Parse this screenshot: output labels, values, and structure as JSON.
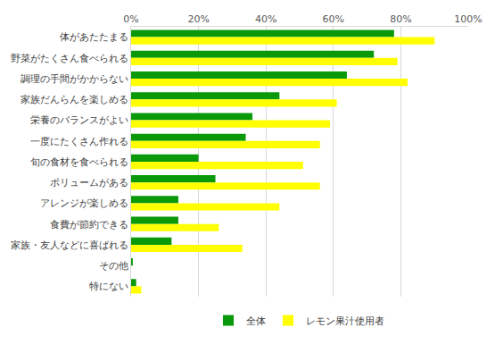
{
  "chart_data": {
    "type": "bar",
    "orientation": "horizontal",
    "categories": [
      "体があたたまる",
      "野菜がたくさん食べられる",
      "調理の手間がかからない",
      "家族だんらんを楽しめる",
      "栄養のバランスがよい",
      "一度にたくさん作れる",
      "旬の食材を食べられる",
      "ボリュームがある",
      "アレンジが楽しめる",
      "食費が節約できる",
      "家族・友人などに喜ばれる",
      "その他",
      "特にない"
    ],
    "series": [
      {
        "name": "全体",
        "color": "#0a990a",
        "values": [
          78,
          72,
          64,
          44,
          36,
          34,
          20,
          25,
          14,
          14,
          12,
          0.5,
          1.5
        ]
      },
      {
        "name": "レモン果汁使用者",
        "color": "#ffff00",
        "values": [
          90,
          79,
          82,
          61,
          59,
          56,
          51,
          56,
          44,
          26,
          33,
          0,
          3
        ]
      }
    ],
    "xlim": [
      0,
      100
    ],
    "xticks": [
      {
        "value": 0,
        "label": "0%"
      },
      {
        "value": 20,
        "label": "20%"
      },
      {
        "value": 40,
        "label": "40%"
      },
      {
        "value": 60,
        "label": "60%"
      },
      {
        "value": 80,
        "label": "80%"
      },
      {
        "value": 100,
        "label": "100%"
      }
    ],
    "grid": true,
    "legend": "bottom"
  }
}
